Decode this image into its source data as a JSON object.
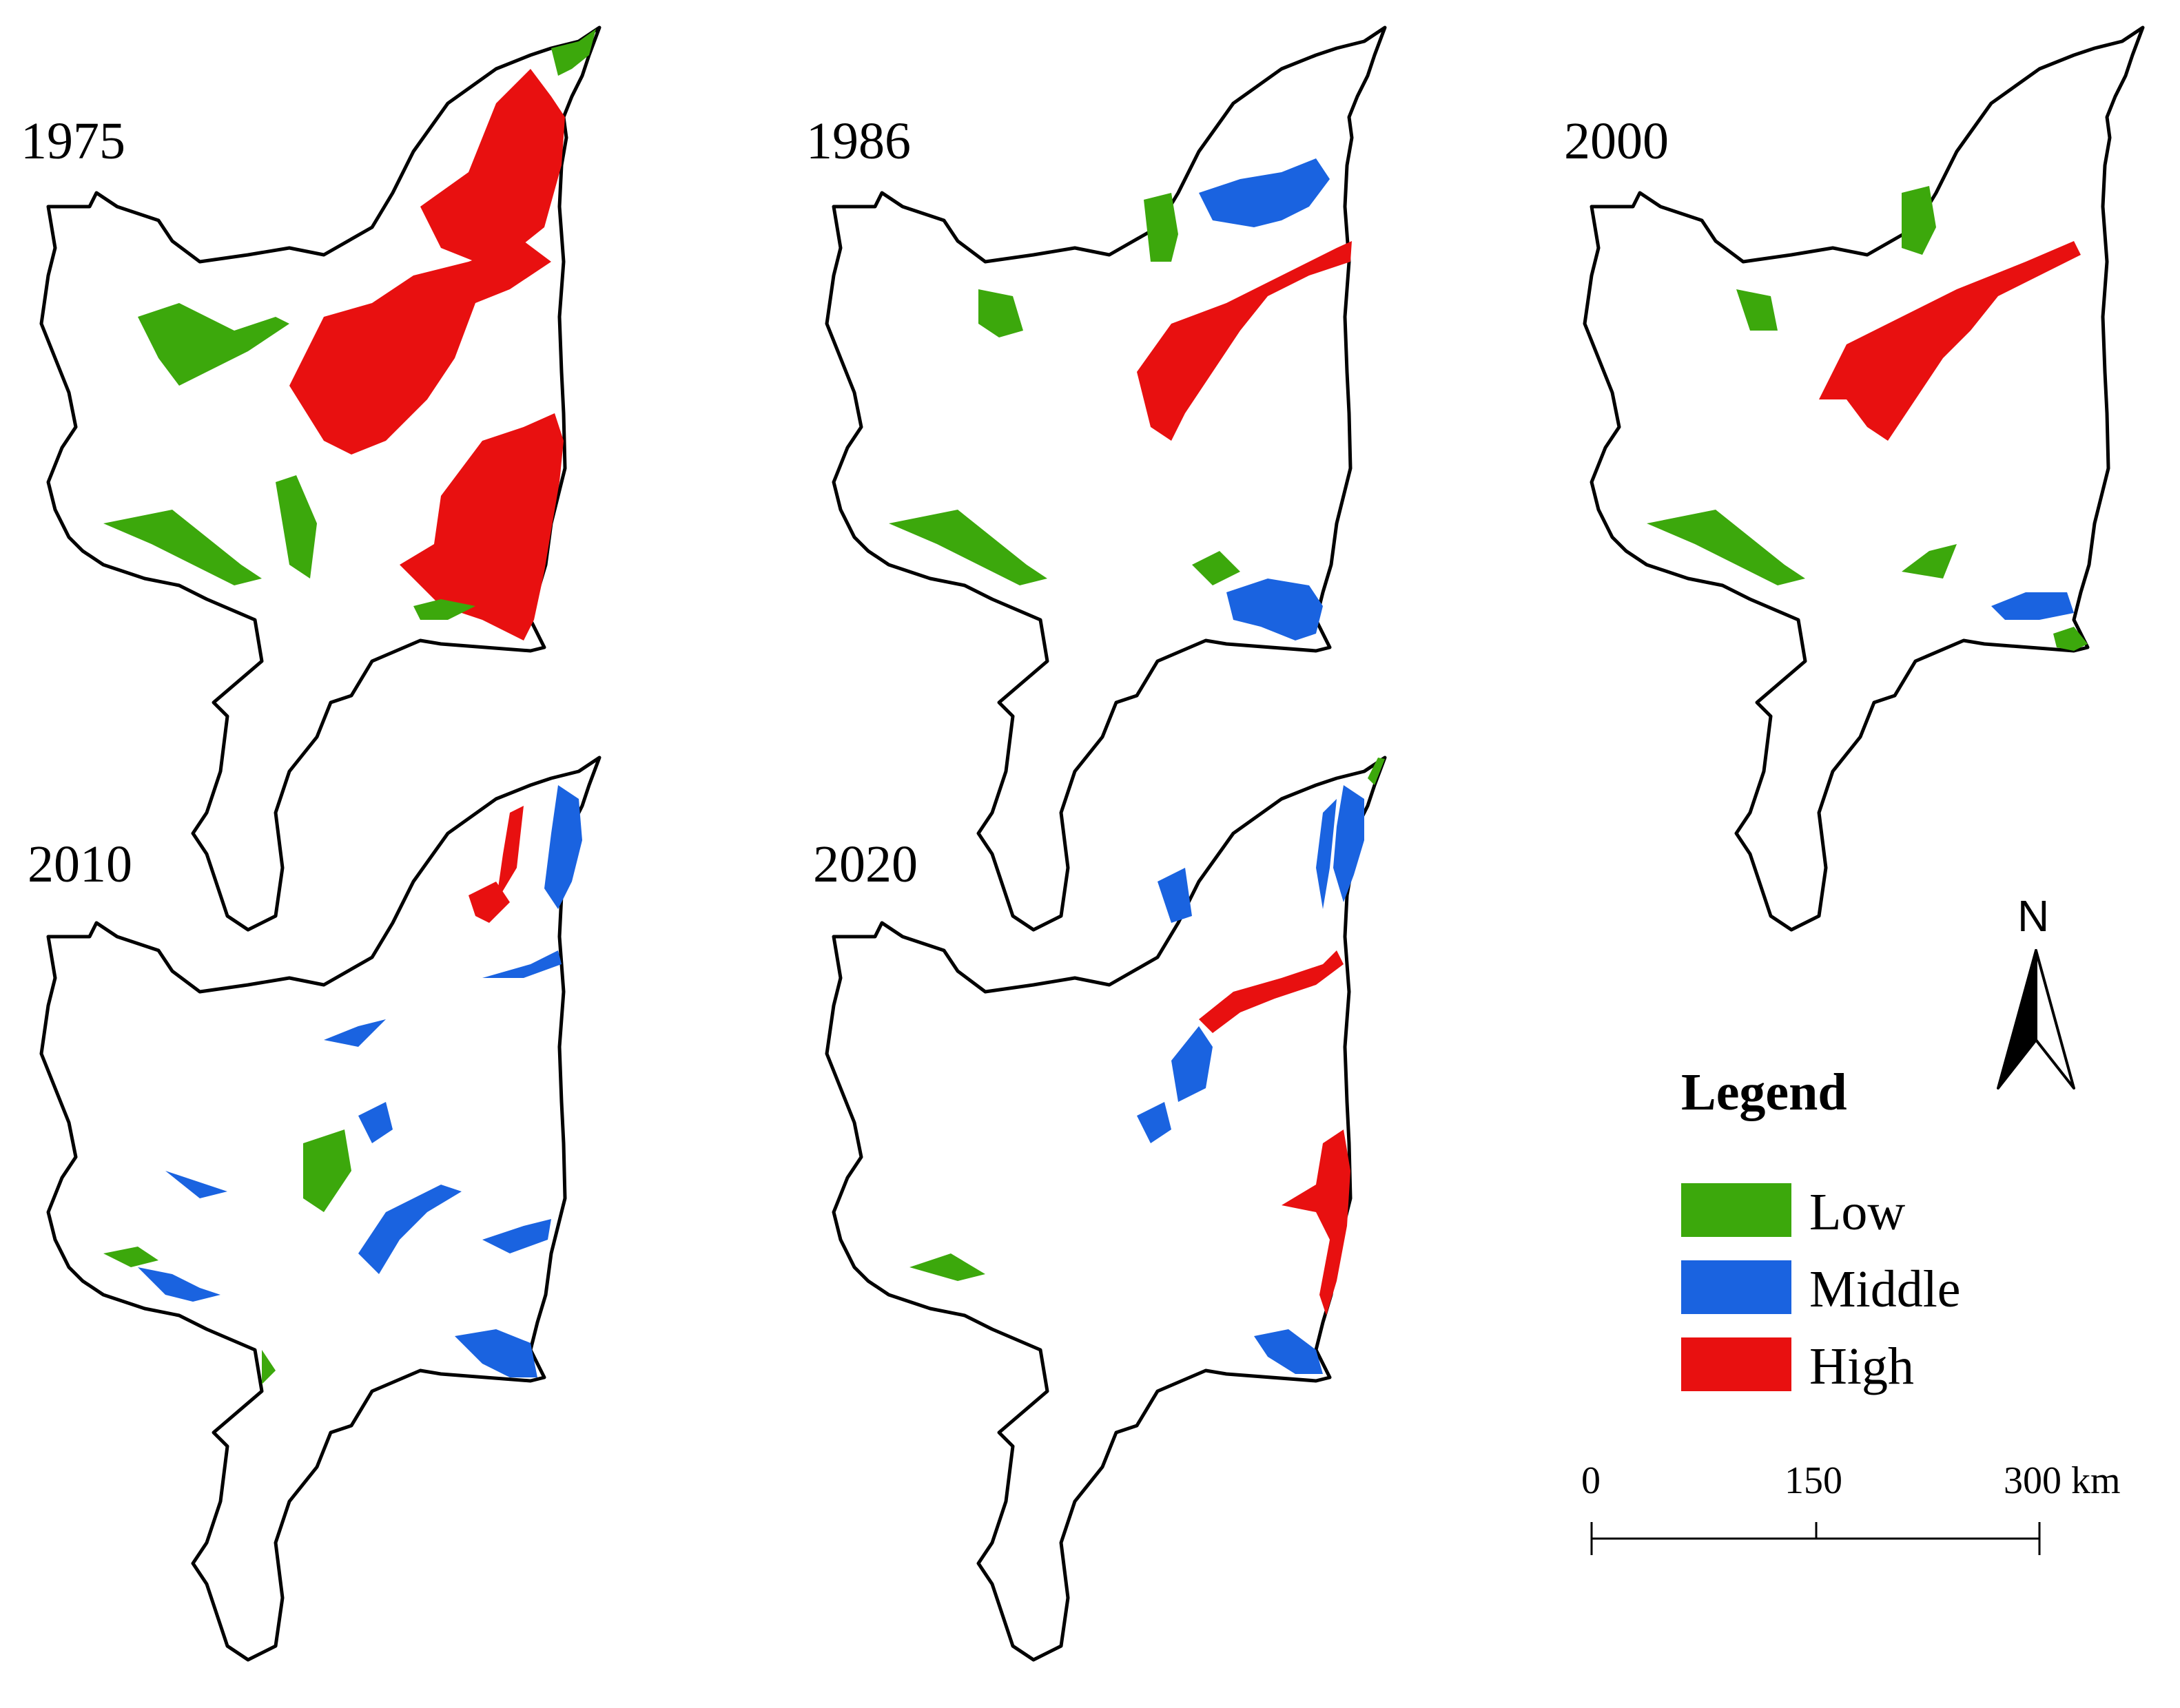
{
  "panels": [
    {
      "year": "1975"
    },
    {
      "year": "1986"
    },
    {
      "year": "2000"
    },
    {
      "year": "2010"
    },
    {
      "year": "2020"
    }
  ],
  "legend": {
    "title": "Legend",
    "items": [
      {
        "label": "Low",
        "color": "#3ca80c"
      },
      {
        "label": "Middle",
        "color": "#1a63e0"
      },
      {
        "label": "High",
        "color": "#e81010"
      }
    ]
  },
  "scale_bar": {
    "ticks": [
      "0",
      "150",
      "300 km"
    ]
  },
  "north_arrow": {
    "label": "N"
  }
}
